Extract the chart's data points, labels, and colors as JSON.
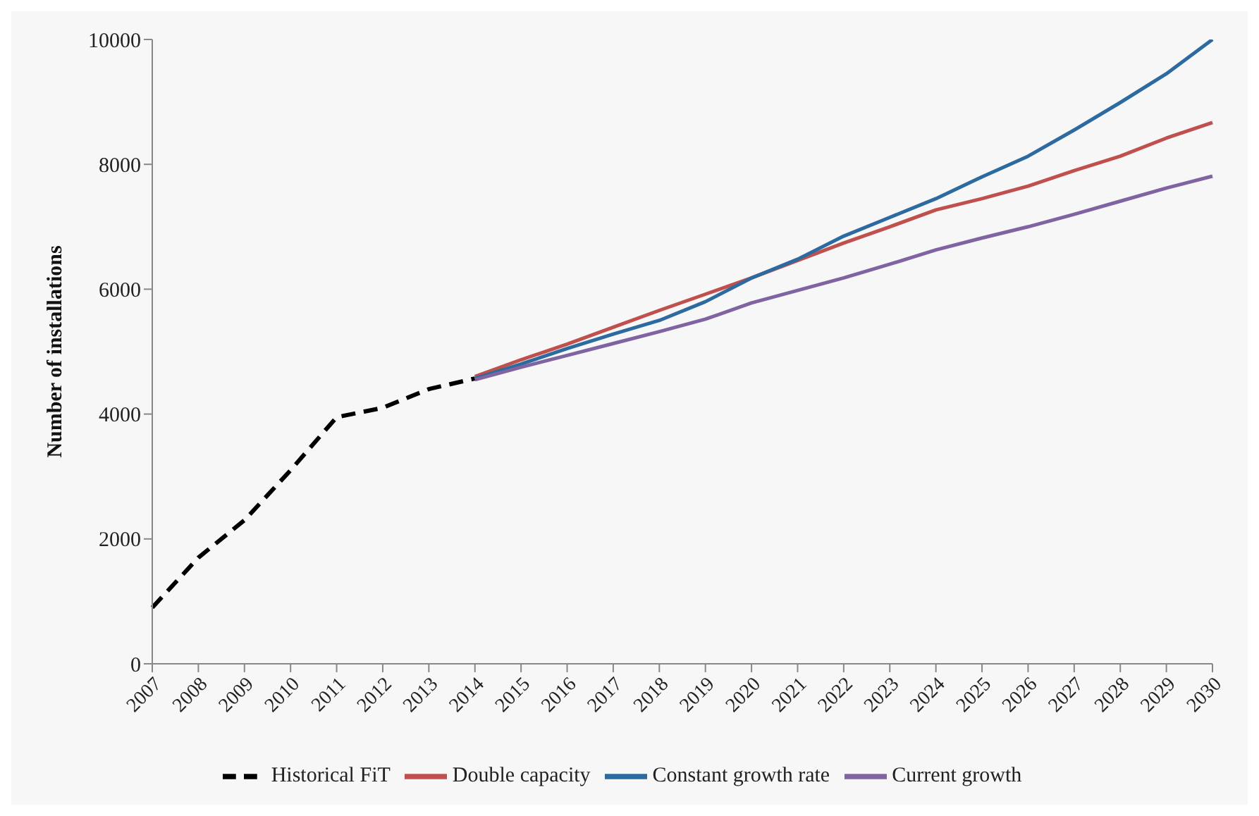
{
  "chart_data": {
    "type": "line",
    "ylabel": "Number of installations",
    "categories": [
      "2007",
      "2008",
      "2009",
      "2010",
      "2011",
      "2012",
      "2013",
      "2014",
      "2015",
      "2016",
      "2017",
      "2018",
      "2019",
      "2020",
      "2021",
      "2022",
      "2023",
      "2024",
      "2025",
      "2026",
      "2027",
      "2028",
      "2029",
      "2030"
    ],
    "series": [
      {
        "name": "Historical FiT",
        "color": "#000000",
        "line_style": "dashed",
        "values": [
          900,
          1700,
          2300,
          3100,
          3950,
          4100,
          4400,
          4570,
          null,
          null,
          null,
          null,
          null,
          null,
          null,
          null,
          null,
          null,
          null,
          null,
          null,
          null,
          null,
          null
        ]
      },
      {
        "name": "Double capacity",
        "color": "#c0504d",
        "values": [
          null,
          null,
          null,
          null,
          null,
          null,
          null,
          4600,
          4870,
          5120,
          5390,
          5660,
          5920,
          6180,
          6460,
          6740,
          7000,
          7270,
          7450,
          7650,
          7900,
          8130,
          8420,
          8670
        ]
      },
      {
        "name": "Constant growth rate",
        "color": "#2c6aa0",
        "values": [
          null,
          null,
          null,
          null,
          null,
          null,
          null,
          4570,
          4800,
          5050,
          5280,
          5500,
          5800,
          6180,
          6480,
          6850,
          7150,
          7450,
          7800,
          8130,
          8550,
          8990,
          9450,
          10000
        ]
      },
      {
        "name": "Current growth",
        "color": "#8064a2",
        "values": [
          null,
          null,
          null,
          null,
          null,
          null,
          null,
          4550,
          4750,
          4940,
          5130,
          5320,
          5520,
          5780,
          5980,
          6180,
          6400,
          6630,
          6820,
          7000,
          7200,
          7410,
          7620,
          7810
        ]
      }
    ],
    "ylim": [
      0,
      10000
    ],
    "yticks": [
      0,
      2000,
      4000,
      6000,
      8000,
      10000
    ],
    "grid": false,
    "legend": "bottom",
    "line_style": "solid",
    "marker": "none"
  }
}
